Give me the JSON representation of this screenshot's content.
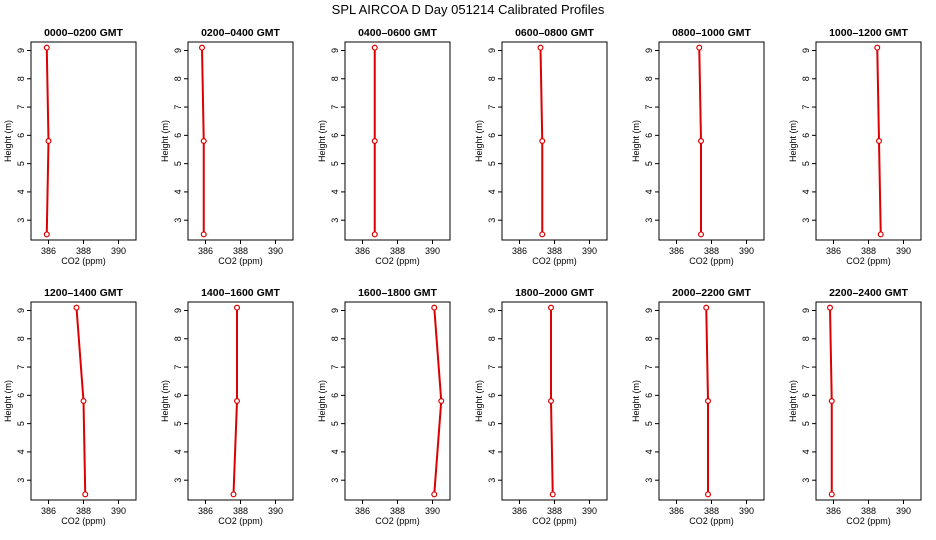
{
  "title": "SPL AIRCOA D  Day 051214  Calibrated Profiles",
  "chart_data": {
    "type": "line",
    "xlabel": "CO2 (ppm)",
    "ylabel": "Height (m)",
    "xlim": [
      385,
      391
    ],
    "ylim": [
      2.3,
      9.3
    ],
    "x_ticks": [
      "386",
      "388",
      "390"
    ],
    "y_ticks": [
      "3",
      "4",
      "5",
      "6",
      "7",
      "8",
      "9"
    ],
    "line_color": "#dd0000",
    "heights": [
      2.5,
      5.8,
      9.1
    ],
    "panels": [
      {
        "title": "0000–0200 GMT",
        "values": [
          385.9,
          386.0,
          385.9
        ]
      },
      {
        "title": "0200–0400 GMT",
        "values": [
          385.9,
          385.9,
          385.8
        ]
      },
      {
        "title": "0400–0600 GMT",
        "values": [
          386.7,
          386.7,
          386.7
        ]
      },
      {
        "title": "0600–0800 GMT",
        "values": [
          387.3,
          387.3,
          387.2
        ]
      },
      {
        "title": "0800–1000 GMT",
        "values": [
          387.4,
          387.4,
          387.3
        ]
      },
      {
        "title": "1000–1200 GMT",
        "values": [
          388.7,
          388.6,
          388.5
        ]
      },
      {
        "title": "1200–1400 GMT",
        "values": [
          388.1,
          388.0,
          387.6
        ]
      },
      {
        "title": "1400–1600 GMT",
        "values": [
          387.6,
          387.8,
          387.8
        ]
      },
      {
        "title": "1600–1800 GMT",
        "values": [
          390.1,
          390.5,
          390.1
        ]
      },
      {
        "title": "1800–2000 GMT",
        "values": [
          387.9,
          387.8,
          387.8
        ]
      },
      {
        "title": "2000–2200 GMT",
        "values": [
          387.8,
          387.8,
          387.7
        ]
      },
      {
        "title": "2200–2400 GMT",
        "values": [
          385.9,
          385.9,
          385.8
        ]
      }
    ]
  }
}
